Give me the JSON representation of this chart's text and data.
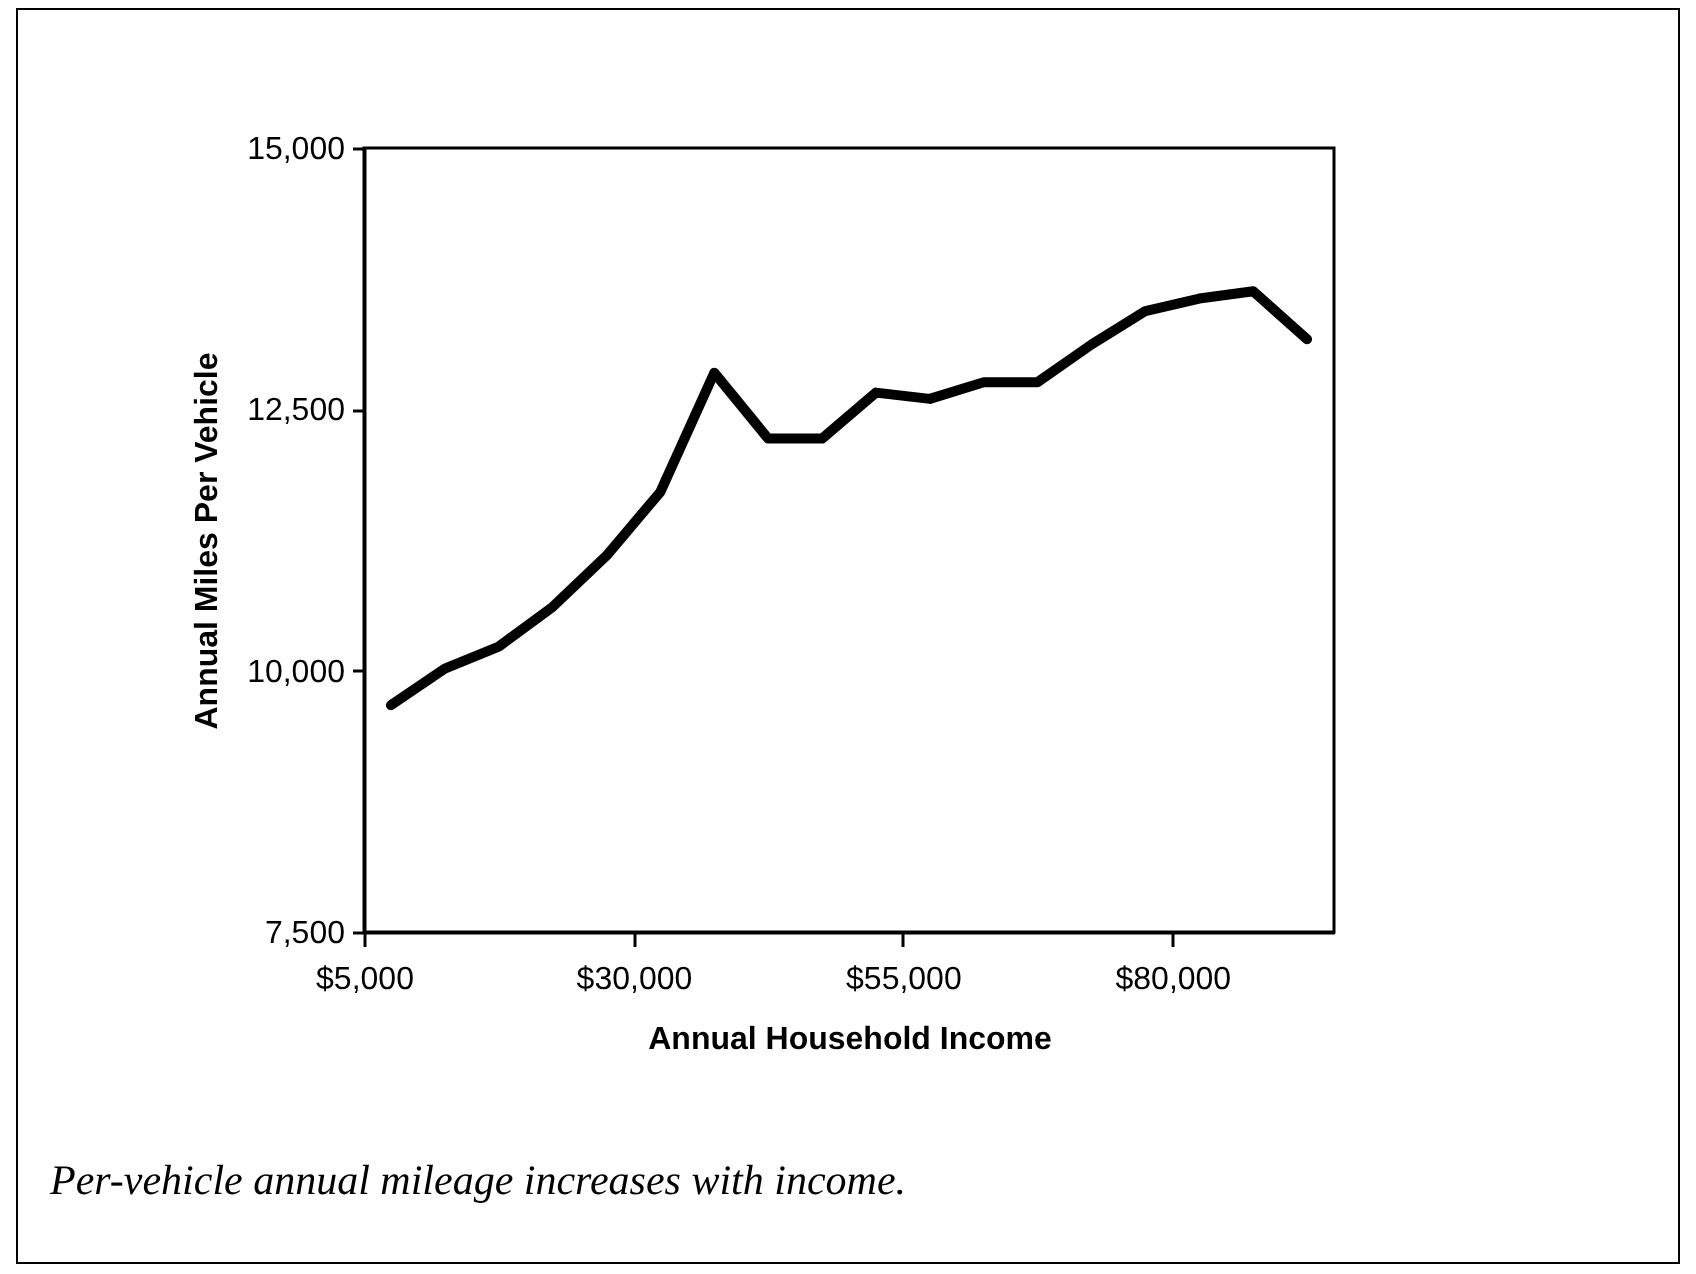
{
  "chart_data": {
    "type": "line",
    "xlabel": "Annual Household Income",
    "ylabel": "Annual Miles Per Vehicle",
    "annotations": [
      "Per-vehicle annual mileage increases with income."
    ],
    "x": [
      7500,
      12500,
      17500,
      22500,
      27500,
      32500,
      37500,
      42500,
      47500,
      52500,
      57500,
      62500,
      67500,
      72500,
      77500,
      82500,
      87500,
      92500
    ],
    "series": [
      {
        "color": "#000000",
        "values": [
          9670,
          10020,
          10230,
          10610,
          11100,
          11710,
          12850,
          12220,
          12220,
          12660,
          12600,
          12760,
          12760,
          13120,
          13440,
          13560,
          13630,
          13170
        ]
      }
    ],
    "xlim": [
      5000,
      95000
    ],
    "xticks": [
      {
        "value": 5000,
        "label": "$5,000"
      },
      {
        "value": 30000,
        "label": "$30,000"
      },
      {
        "value": 55000,
        "label": "$55,000"
      },
      {
        "value": 80000,
        "label": "$80,000"
      }
    ],
    "ylim": [
      7500,
      15000
    ],
    "yticks": [
      {
        "value": 7500,
        "label": "7,500"
      },
      {
        "value": 10000,
        "label": "10,000"
      },
      {
        "value": 12500,
        "label": "12,500"
      },
      {
        "value": 15000,
        "label": "15,000"
      }
    ],
    "grid": false,
    "marker": "none",
    "line_style": "solid"
  }
}
